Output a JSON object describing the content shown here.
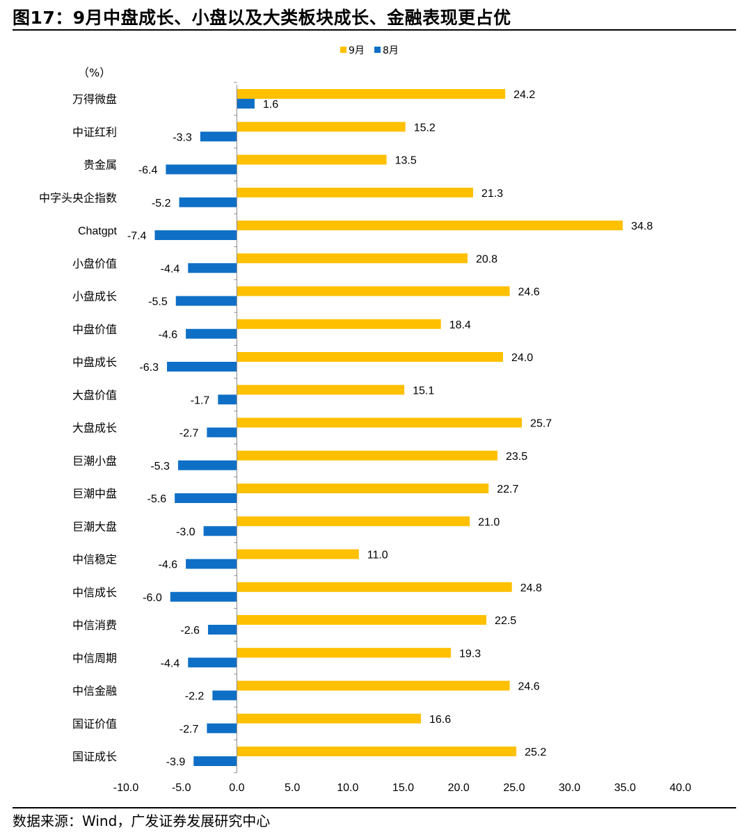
{
  "header": {
    "title": "图17：9月中盘成长、小盘以及大类板块成长、金融表现更占优"
  },
  "footer": {
    "source": "数据来源：Wind，广发证券发展研究中心"
  },
  "chart_data": {
    "type": "bar",
    "orientation": "horizontal",
    "unit_label": "（%）",
    "categories": [
      "万得微盘",
      "中证红利",
      "贵金属",
      "中字头央企指数",
      "Chatgpt",
      "小盘价值",
      "小盘成长",
      "中盘价值",
      "中盘成长",
      "大盘价值",
      "大盘成长",
      "巨潮小盘",
      "巨潮中盘",
      "巨潮大盘",
      "中信稳定",
      "中信成长",
      "中信消费",
      "中信周期",
      "中信金融",
      "国证价值",
      "国证成长"
    ],
    "series": [
      {
        "name": "9月",
        "color": "#FFC000",
        "values": [
          24.2,
          15.2,
          13.5,
          21.3,
          34.8,
          20.8,
          24.6,
          18.4,
          24.0,
          15.1,
          25.7,
          23.5,
          22.7,
          21.0,
          11.0,
          24.8,
          22.5,
          19.3,
          24.6,
          16.6,
          25.2
        ],
        "labels": [
          "24.2",
          "15.2",
          "13.5",
          "21.3",
          "34.8",
          "20.8",
          "24.6",
          "18.4",
          "24.0",
          "15.1",
          "25.7",
          "23.5",
          "22.7",
          "21.0",
          "11.0",
          "24.8",
          "22.5",
          "19.3",
          "24.6",
          "16.6",
          "25.2"
        ]
      },
      {
        "name": "8月",
        "color": "#0F6FC6",
        "values": [
          1.6,
          -3.3,
          -6.4,
          -5.2,
          -7.4,
          -4.4,
          -5.5,
          -4.6,
          -6.3,
          -1.7,
          -2.7,
          -5.3,
          -5.6,
          -3.0,
          -4.6,
          -6.0,
          -2.6,
          -4.4,
          -2.2,
          -2.7,
          -3.9
        ],
        "labels": [
          "1.6",
          "-3.3",
          "-6.4",
          "-5.2",
          "-7.4",
          "-4.4",
          "-5.5",
          "-4.6",
          "-6.3",
          "-1.7",
          "-2.7",
          "-5.3",
          "-5.6",
          "-3.0",
          "-4.6",
          "-6.0",
          "-2.6",
          "-4.4",
          "-2.2",
          "-2.7",
          "-3.9"
        ]
      }
    ],
    "xlim": [
      -10,
      40
    ],
    "xticks": [
      "-10.0",
      "-5.0",
      "0.0",
      "5.0",
      "10.0",
      "15.0",
      "20.0",
      "25.0",
      "30.0",
      "35.0",
      "40.0"
    ],
    "xtick_values": [
      -10,
      -5,
      0,
      5,
      10,
      15,
      20,
      25,
      30,
      35,
      40
    ],
    "grid": false,
    "legend_position": "top-center"
  }
}
